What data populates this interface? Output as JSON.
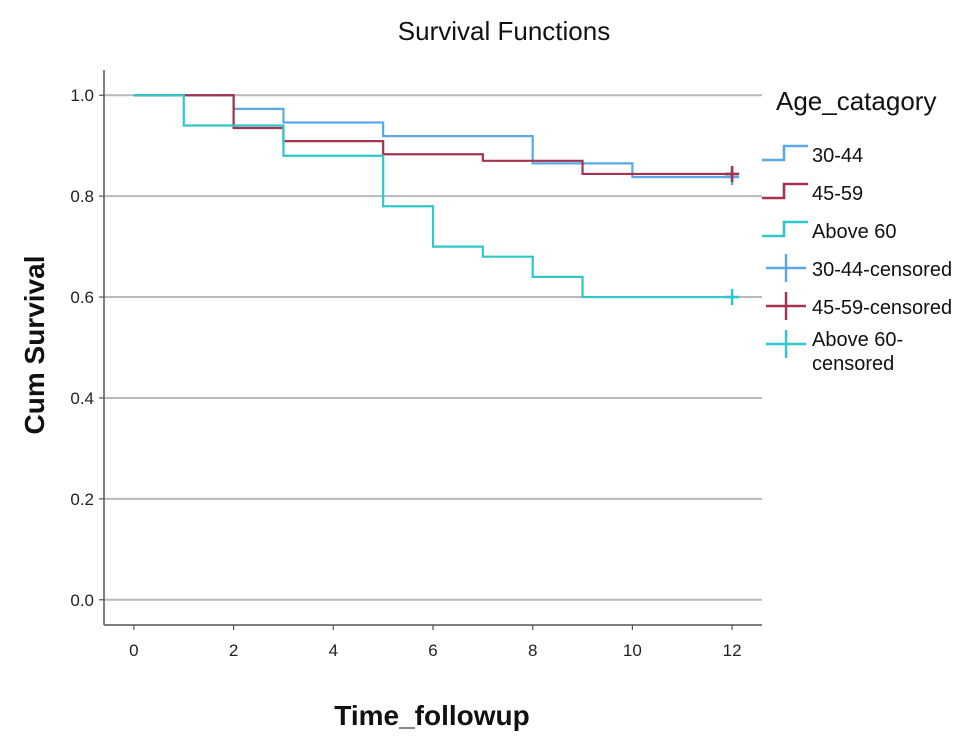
{
  "chart_data": {
    "type": "line",
    "title": "Survival Functions",
    "xlabel": "Time_followup",
    "ylabel": "Cum Survival",
    "xlim": [
      -0.6,
      12.6
    ],
    "ylim": [
      -0.05,
      1.05
    ],
    "x_ticks": [
      0,
      2,
      4,
      6,
      8,
      10,
      12
    ],
    "x_tick_labels": [
      "0",
      "2",
      "4",
      "6",
      "8",
      "10",
      "12"
    ],
    "y_ticks": [
      0.0,
      0.2,
      0.4,
      0.6,
      0.8,
      1.0
    ],
    "y_tick_labels": [
      "0.0",
      "0.2",
      "0.4",
      "0.6",
      "0.8",
      "1.0"
    ],
    "grid": "horizontal",
    "legend_title": "Age_catagory",
    "legend_position": "right",
    "series": [
      {
        "name": "30-44",
        "color": "#5aa9e6",
        "step": true,
        "x": [
          0,
          2,
          3,
          5,
          8,
          10,
          12
        ],
        "y": [
          1.0,
          0.973,
          0.946,
          0.919,
          0.865,
          0.838,
          0.838
        ]
      },
      {
        "name": "45-59",
        "color": "#a3334e",
        "step": true,
        "x": [
          0,
          2,
          3,
          5,
          7,
          9,
          12
        ],
        "y": [
          1.0,
          0.935,
          0.909,
          0.883,
          0.87,
          0.844,
          0.844
        ]
      },
      {
        "name": "Above 60",
        "color": "#2fc8c8",
        "step": true,
        "x": [
          0,
          1,
          3,
          5,
          6,
          7,
          8,
          9,
          12
        ],
        "y": [
          1.0,
          0.94,
          0.88,
          0.78,
          0.7,
          0.68,
          0.64,
          0.6,
          0.6
        ]
      }
    ],
    "censored": [
      {
        "name": "30-44-censored",
        "color": "#5aa9e6",
        "x": [
          12
        ],
        "y": [
          0.838
        ]
      },
      {
        "name": "45-59-censored",
        "color": "#a3334e",
        "x": [
          12
        ],
        "y": [
          0.844
        ]
      },
      {
        "name": "Above 60-censored",
        "color": "#2fc8c8",
        "x": [
          12
        ],
        "y": [
          0.6
        ]
      }
    ],
    "legend": [
      {
        "label": "30-44",
        "kind": "step",
        "color": "#5aa9e6"
      },
      {
        "label": "45-59",
        "kind": "step",
        "color": "#a3334e"
      },
      {
        "label": "Above 60",
        "kind": "step",
        "color": "#2fc8c8"
      },
      {
        "label": "30-44-censored",
        "kind": "cross",
        "color": "#5aa9e6"
      },
      {
        "label": "45-59-censored",
        "kind": "cross",
        "color": "#a3334e"
      },
      {
        "label_lines": [
          "Above 60-",
          "censored"
        ],
        "kind": "cross",
        "color": "#2fc8c8"
      }
    ]
  }
}
